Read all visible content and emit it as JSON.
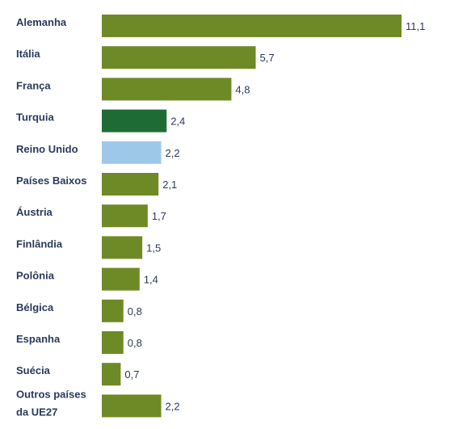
{
  "chart_data": {
    "type": "bar",
    "orientation": "horizontal",
    "categories": [
      [
        "Alemanha"
      ],
      [
        "Itália"
      ],
      [
        "França"
      ],
      [
        "Turquia"
      ],
      [
        "Reino Unido"
      ],
      [
        "Países Baixos"
      ],
      [
        "Áustria"
      ],
      [
        "Finlândia"
      ],
      [
        "Polônia"
      ],
      [
        "Bélgica"
      ],
      [
        "Espanha"
      ],
      [
        "Suécia"
      ],
      [
        "Outros países",
        "da UE27"
      ]
    ],
    "values": [
      11.1,
      5.7,
      4.8,
      2.4,
      2.2,
      2.1,
      1.7,
      1.5,
      1.4,
      0.8,
      0.8,
      0.7,
      2.2
    ],
    "value_labels": [
      "11,1",
      "5,7",
      "4,8",
      "2,4",
      "2,2",
      "2,1",
      "1,7",
      "1,5",
      "1,4",
      "0,8",
      "0,8",
      "0,7",
      "2,2"
    ],
    "bar_colors": [
      "#6e8a26",
      "#6e8a26",
      "#6e8a26",
      "#1e6b35",
      "#9ec8e8",
      "#6e8a26",
      "#6e8a26",
      "#6e8a26",
      "#6e8a26",
      "#6e8a26",
      "#6e8a26",
      "#6e8a26",
      "#6e8a26"
    ],
    "title": "",
    "xlabel": "",
    "ylabel": "",
    "xlim": [
      0,
      11.1
    ],
    "grid": false,
    "legend": "none"
  }
}
